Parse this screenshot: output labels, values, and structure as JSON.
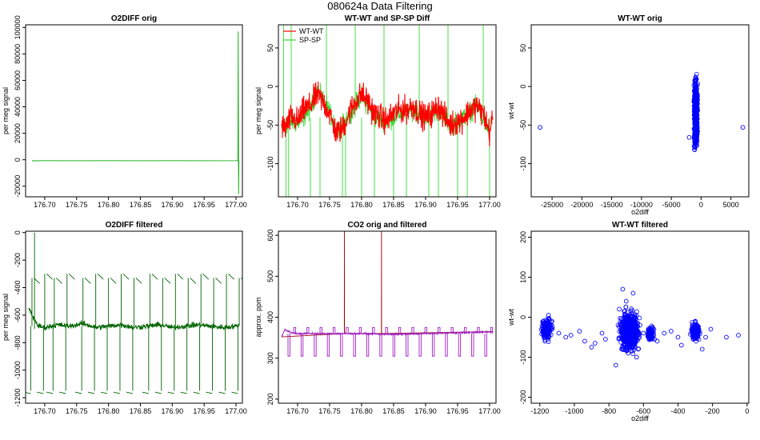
{
  "title": "080624a   Data Filtering",
  "colors": {
    "green": "#00aa00",
    "dark_green": "#006400",
    "red": "#ff0000",
    "light_green": "#33dd33",
    "blue": "#0000ff",
    "purple": "#a020c0",
    "dark_red": "#a00000"
  },
  "chart_data": [
    {
      "id": "p1",
      "type": "line",
      "title": "O2DIFF orig",
      "xlabel": "",
      "ylabel": "per meg signal",
      "xlim": [
        176.67,
        177.01
      ],
      "ylim": [
        -28000,
        102000
      ],
      "xticks": [
        176.7,
        176.75,
        176.8,
        176.85,
        176.9,
        176.95,
        177.0
      ],
      "xtick_labels": [
        "176.70",
        "176.75",
        "176.80",
        "176.85",
        "176.90",
        "176.95",
        "177.00"
      ],
      "yticks": [
        -20000,
        0,
        20000,
        40000,
        60000,
        80000,
        100000
      ],
      "ytick_labels": [
        "-20000",
        "0",
        "20000",
        "40000",
        "60000",
        "80000",
        "100000"
      ],
      "series": [
        {
          "name": "O2DIFF",
          "color": "#00aa00",
          "points": [
            [
              176.68,
              -800
            ],
            [
              176.7,
              -700
            ],
            [
              176.75,
              -750
            ],
            [
              176.8,
              -700
            ],
            [
              176.85,
              -760
            ],
            [
              176.9,
              -680
            ],
            [
              176.95,
              -720
            ],
            [
              177.0,
              -700
            ],
            [
              177.003,
              -600
            ],
            [
              177.0035,
              97000
            ],
            [
              177.004,
              -26000
            ],
            [
              177.0045,
              -1000
            ]
          ]
        }
      ]
    },
    {
      "id": "p2",
      "type": "line",
      "title": "WT-WT and SP-SP Diff",
      "xlabel": "",
      "ylabel": "per meg signal",
      "xlim": [
        176.67,
        177.01
      ],
      "ylim": [
        -143,
        80
      ],
      "xticks": [
        176.7,
        176.75,
        176.8,
        176.85,
        176.9,
        176.95,
        177.0
      ],
      "xtick_labels": [
        "176.70",
        "176.75",
        "176.80",
        "176.85",
        "176.90",
        "176.95",
        "177.00"
      ],
      "yticks": [
        -100,
        -50,
        0,
        50
      ],
      "ytick_labels": [
        "-100",
        "-50",
        "0",
        "50"
      ],
      "legend": [
        "WT-WT",
        "SP-SP"
      ],
      "series": [
        {
          "name": "SP-SP",
          "color": "#33dd33",
          "points": [
            [
              176.675,
              -55
            ],
            [
              176.69,
              -45
            ],
            [
              176.7,
              -48
            ],
            [
              176.72,
              -30
            ],
            [
              176.73,
              -5
            ],
            [
              176.75,
              -30
            ],
            [
              176.76,
              -65
            ],
            [
              176.78,
              -35
            ],
            [
              176.8,
              -12
            ],
            [
              176.82,
              -40
            ],
            [
              176.84,
              -45
            ],
            [
              176.86,
              -35
            ],
            [
              176.88,
              -30
            ],
            [
              176.9,
              -40
            ],
            [
              176.92,
              -30
            ],
            [
              176.94,
              -50
            ],
            [
              176.96,
              -40
            ],
            [
              176.98,
              -25
            ],
            [
              177.0,
              -60
            ]
          ]
        },
        {
          "name": "WT-WT",
          "color": "#ff0000",
          "points": [
            [
              176.675,
              -50
            ],
            [
              176.68,
              -55
            ],
            [
              176.69,
              -40
            ],
            [
              176.7,
              -45
            ],
            [
              176.71,
              -30
            ],
            [
              176.72,
              -25
            ],
            [
              176.73,
              -10
            ],
            [
              176.74,
              -20
            ],
            [
              176.75,
              -35
            ],
            [
              176.76,
              -60
            ],
            [
              176.77,
              -55
            ],
            [
              176.78,
              -35
            ],
            [
              176.79,
              -20
            ],
            [
              176.8,
              -10
            ],
            [
              176.81,
              -20
            ],
            [
              176.82,
              -35
            ],
            [
              176.83,
              -40
            ],
            [
              176.84,
              -45
            ],
            [
              176.85,
              -35
            ],
            [
              176.86,
              -30
            ],
            [
              176.87,
              -30
            ],
            [
              176.88,
              -25
            ],
            [
              176.89,
              -35
            ],
            [
              176.9,
              -40
            ],
            [
              176.91,
              -35
            ],
            [
              176.92,
              -25
            ],
            [
              176.93,
              -40
            ],
            [
              176.94,
              -50
            ],
            [
              176.95,
              -45
            ],
            [
              176.96,
              -40
            ],
            [
              176.97,
              -30
            ],
            [
              176.98,
              -25
            ],
            [
              176.99,
              -35
            ],
            [
              177.0,
              -60
            ],
            [
              177.005,
              -40
            ]
          ]
        }
      ]
    },
    {
      "id": "p3",
      "type": "scatter",
      "title": "WT-WT orig",
      "xlabel": "o2diff",
      "ylabel": "wt-wt",
      "xlim": [
        -28500,
        8000
      ],
      "ylim": [
        -143,
        80
      ],
      "xticks": [
        -25000,
        -20000,
        -15000,
        -10000,
        -5000,
        0,
        5000
      ],
      "xtick_labels": [
        "-25000",
        "-20000",
        "-15000",
        "-10000",
        "-5000",
        "0",
        "5000"
      ],
      "yticks": [
        -100,
        -50,
        0,
        50
      ],
      "ytick_labels": [
        "-100",
        "-50",
        "0",
        "50"
      ],
      "series": [
        {
          "name": "WT-WT",
          "color": "#0000ff",
          "points": [
            [
              -27000,
              -53
            ],
            [
              7000,
              -53
            ],
            [
              -2000,
              -66
            ]
          ]
        }
      ]
    },
    {
      "id": "p4",
      "type": "line",
      "title": "O2DIFF filtered",
      "xlabel": "",
      "ylabel": "per meg signal",
      "xlim": [
        176.67,
        177.01
      ],
      "ylim": [
        -1240,
        10
      ],
      "xticks": [
        176.7,
        176.75,
        176.8,
        176.85,
        176.9,
        176.95,
        177.0
      ],
      "xtick_labels": [
        "176.70",
        "176.75",
        "176.80",
        "176.85",
        "176.90",
        "176.95",
        "177.00"
      ],
      "yticks": [
        -1200,
        -1000,
        -800,
        -600,
        -400,
        -200,
        0
      ],
      "ytick_labels": [
        "-1200",
        "-1000",
        "-800",
        "-600",
        "-400",
        "-200",
        "0"
      ],
      "series": [
        {
          "name": "O2DIFF filtered",
          "color": "#006400",
          "points": [
            [
              176.675,
              -550
            ],
            [
              176.68,
              -600
            ],
            [
              176.69,
              -680
            ],
            [
              176.7,
              -690
            ],
            [
              176.72,
              -670
            ],
            [
              176.74,
              -680
            ],
            [
              176.76,
              -660
            ],
            [
              176.78,
              -690
            ],
            [
              176.8,
              -680
            ],
            [
              176.82,
              -670
            ],
            [
              176.84,
              -690
            ],
            [
              176.86,
              -680
            ],
            [
              176.88,
              -670
            ],
            [
              176.9,
              -690
            ],
            [
              176.92,
              -680
            ],
            [
              176.94,
              -670
            ],
            [
              176.96,
              -680
            ],
            [
              176.98,
              -690
            ],
            [
              177.0,
              -680
            ],
            [
              177.005,
              -670
            ]
          ]
        }
      ]
    },
    {
      "id": "p5",
      "type": "line",
      "title": "CO2 orig and filtered",
      "xlabel": "",
      "ylabel": "approx. ppm",
      "xlim": [
        176.67,
        177.01
      ],
      "ylim": [
        190,
        610
      ],
      "xticks": [
        176.7,
        176.75,
        176.8,
        176.85,
        176.9,
        176.95,
        177.0
      ],
      "xtick_labels": [
        "176.70",
        "176.75",
        "176.80",
        "176.85",
        "176.90",
        "176.95",
        "177.00"
      ],
      "yticks": [
        200,
        300,
        400,
        500,
        600
      ],
      "ytick_labels": [
        "200",
        "300",
        "400",
        "500",
        "600"
      ],
      "series": [
        {
          "name": "CO2 orig",
          "color": "#a00000",
          "points": [
            [
              176.675,
              352
            ],
            [
              176.773,
              360
            ],
            [
              176.7731,
              610
            ],
            [
              176.7732,
              360
            ],
            [
              176.831,
              360
            ],
            [
              176.8311,
              610
            ],
            [
              176.8312,
              360
            ],
            [
              177.005,
              365
            ]
          ]
        },
        {
          "name": "CO2 filtered",
          "color": "#a020c0",
          "points": [
            [
              176.675,
              352
            ],
            [
              176.68,
              370
            ],
            [
              176.69,
              362
            ],
            [
              176.7,
              360
            ],
            [
              176.75,
              360
            ],
            [
              176.8,
              360
            ],
            [
              176.85,
              358
            ],
            [
              176.9,
              360
            ],
            [
              176.95,
              362
            ],
            [
              177.0,
              364
            ],
            [
              177.005,
              365
            ]
          ]
        }
      ]
    },
    {
      "id": "p6",
      "type": "scatter",
      "title": "WT-WT filtered",
      "xlabel": "o2diff",
      "ylabel": "wt-wt",
      "xlim": [
        -1250,
        10
      ],
      "ylim": [
        -215,
        215
      ],
      "xticks": [
        -1200,
        -1000,
        -800,
        -600,
        -400,
        -200,
        0
      ],
      "xtick_labels": [
        "-1200",
        "-1000",
        "-800",
        "-600",
        "-400",
        "-200",
        "0"
      ],
      "yticks": [
        -200,
        -100,
        0,
        100,
        200
      ],
      "ytick_labels": [
        "-200",
        "-100",
        "0",
        "100",
        "200"
      ],
      "series": [
        {
          "name": "WT-WT",
          "color": "#0000ff",
          "points": [
            [
              -1160,
              -30
            ],
            [
              -1150,
              5
            ],
            [
              -1170,
              -60
            ],
            [
              -1140,
              -20
            ],
            [
              -1180,
              -40
            ],
            [
              -1130,
              -10
            ],
            [
              -1090,
              -40
            ],
            [
              -1050,
              -50
            ],
            [
              -1020,
              -45
            ],
            [
              -970,
              -35
            ],
            [
              -940,
              -60
            ],
            [
              -900,
              -75
            ],
            [
              -880,
              -65
            ],
            [
              -840,
              -40
            ],
            [
              -820,
              -55
            ],
            [
              -760,
              -120
            ],
            [
              -740,
              20
            ],
            [
              -720,
              70
            ],
            [
              -700,
              40
            ],
            [
              -680,
              -50
            ],
            [
              -660,
              60
            ],
            [
              -640,
              -100
            ],
            [
              -620,
              -20
            ],
            [
              -600,
              -40
            ],
            [
              -560,
              -30
            ],
            [
              -540,
              -45
            ],
            [
              -520,
              -60
            ],
            [
              -480,
              -40
            ],
            [
              -440,
              -35
            ],
            [
              -400,
              -50
            ],
            [
              -380,
              -70
            ],
            [
              -300,
              -10
            ],
            [
              -280,
              -30
            ],
            [
              -260,
              -80
            ],
            [
              -240,
              -50
            ],
            [
              -210,
              -30
            ],
            [
              -120,
              -50
            ],
            [
              -50,
              -45
            ]
          ]
        }
      ]
    }
  ]
}
